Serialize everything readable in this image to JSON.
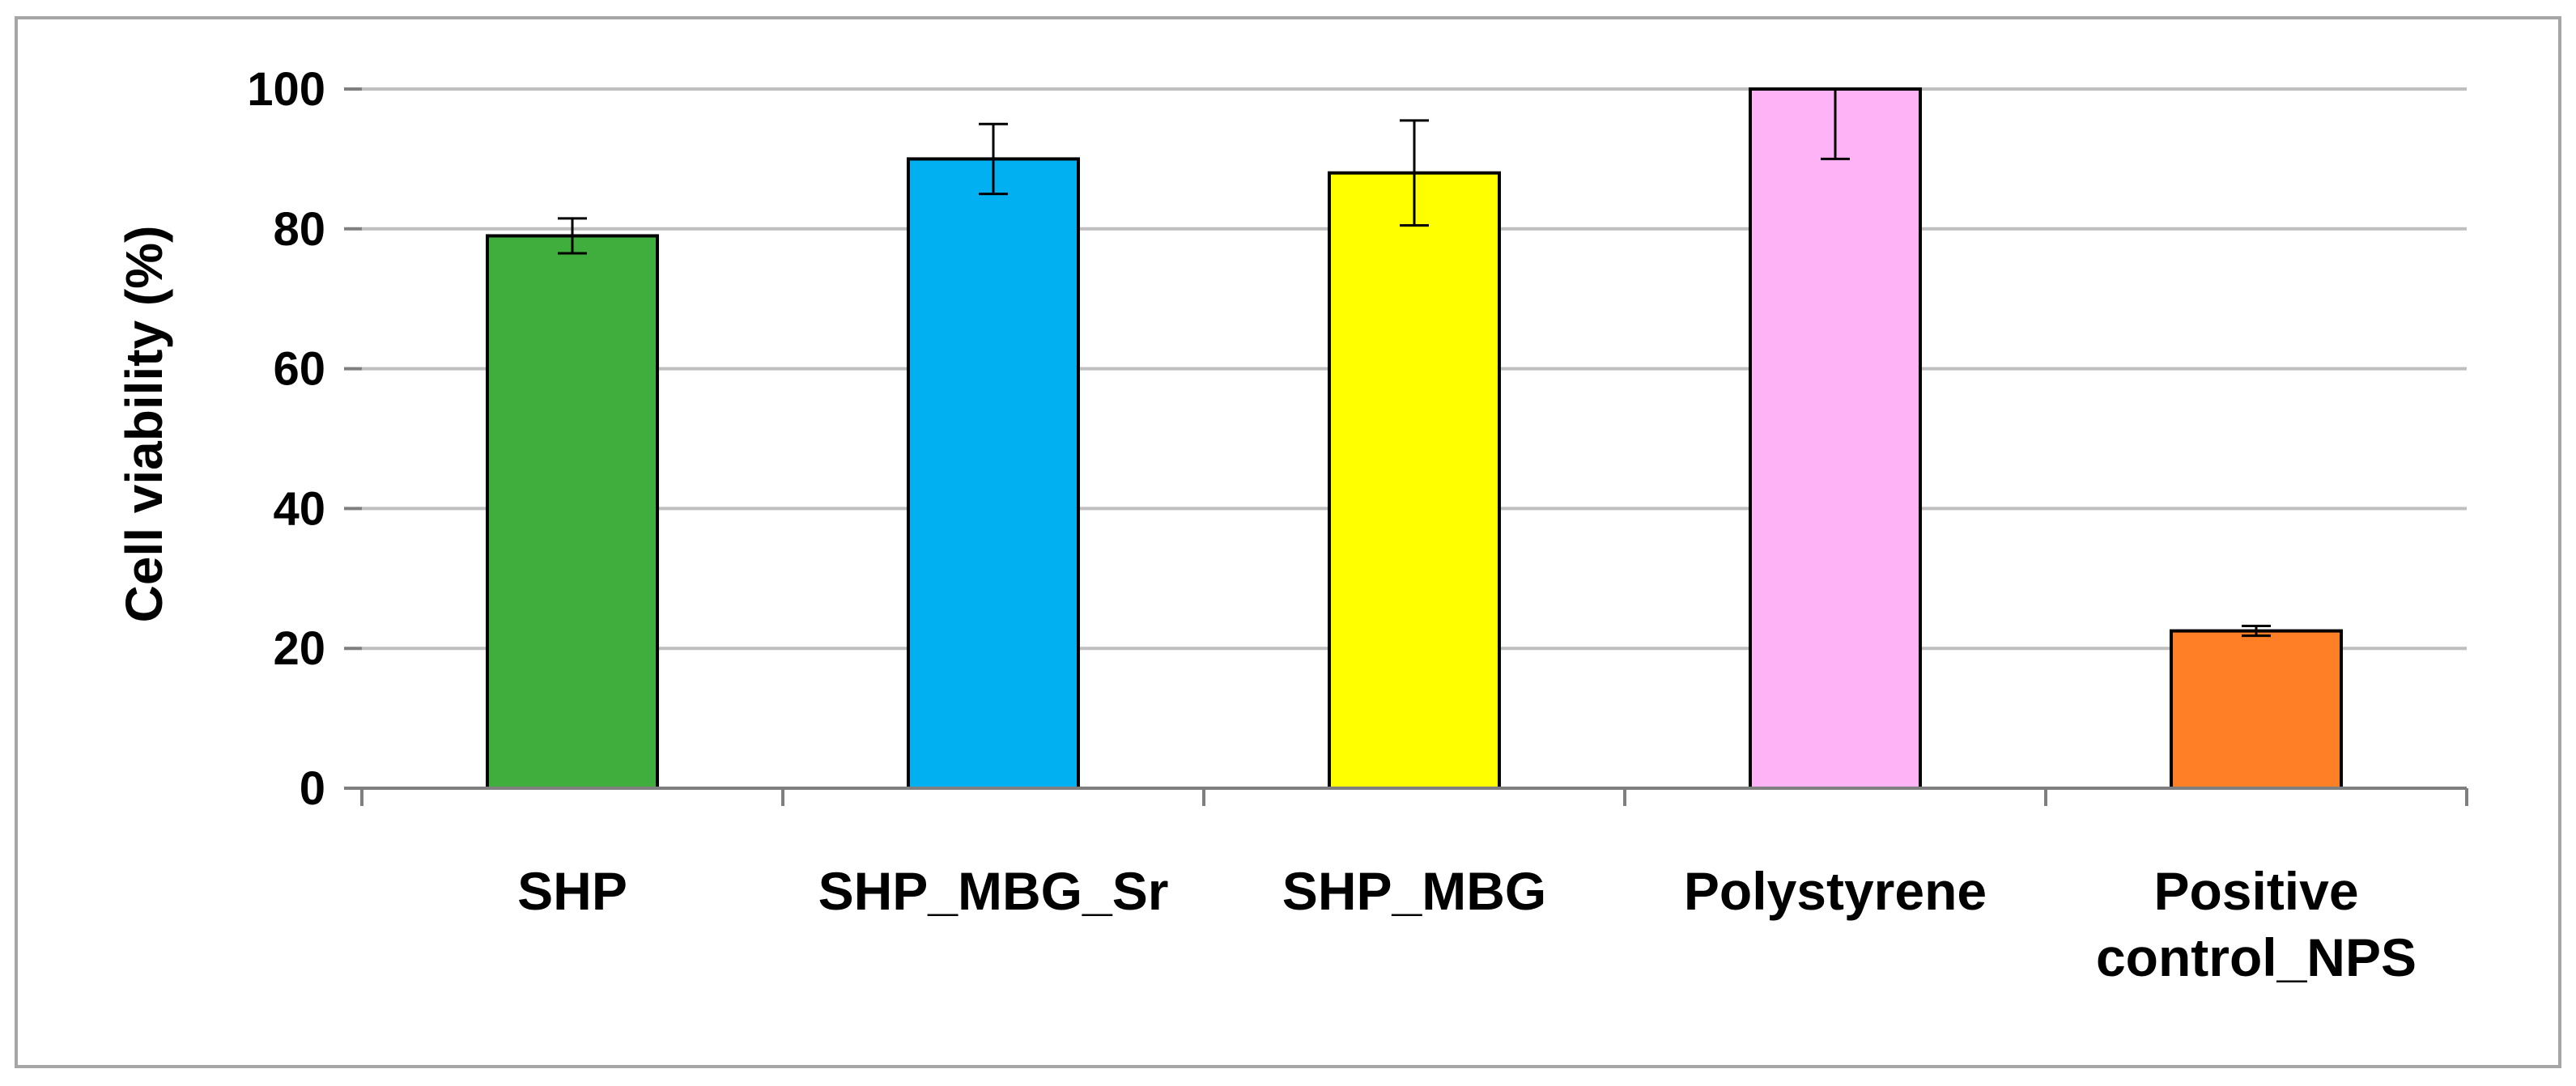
{
  "chart_data": {
    "type": "bar",
    "title": "",
    "xlabel": "",
    "ylabel": "Cell viability (%)",
    "ylim": [
      0,
      100
    ],
    "yticks": [
      "0",
      "20",
      "40",
      "60",
      "80",
      "100"
    ],
    "grid": true,
    "legend": "none",
    "categories": [
      [
        "SHP"
      ],
      [
        "SHP_MBG_Sr"
      ],
      [
        "SHP_MBG"
      ],
      [
        "Polystyrene"
      ],
      [
        "Positive",
        "control_NPS"
      ]
    ],
    "series": [
      {
        "values": [
          79,
          90,
          88,
          100,
          22.5
        ],
        "errors": [
          2.5,
          5,
          7.5,
          10,
          0.7
        ],
        "colors": [
          "#3fae3c",
          "#00b0f0",
          "#ffff00",
          "#ffb3f7",
          "#ff7f27"
        ]
      }
    ]
  }
}
